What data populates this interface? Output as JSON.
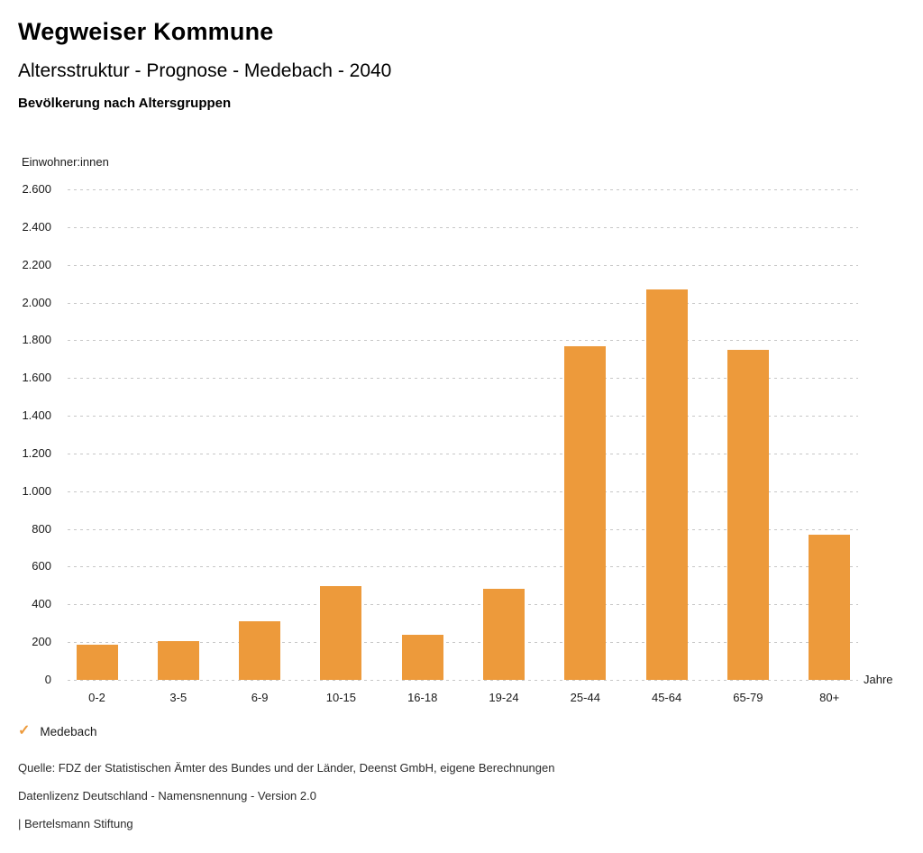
{
  "header": {
    "title": "Wegweiser Kommune",
    "subtitle": "Altersstruktur - Prognose - Medebach - 2040",
    "chart_heading": "Bevölkerung nach Altersgruppen"
  },
  "chart_data": {
    "type": "bar",
    "title": "Bevölkerung nach Altersgruppen",
    "unit_label": "Einwohner:innen",
    "xlabel": "Jahre",
    "ylabel": "Einwohner:innen",
    "categories": [
      "0-2",
      "3-5",
      "6-9",
      "10-15",
      "16-18",
      "19-24",
      "25-44",
      "45-64",
      "65-79",
      "80+"
    ],
    "series": [
      {
        "name": "Medebach",
        "values": [
          185,
          205,
          310,
          495,
          240,
          485,
          1770,
          2070,
          1750,
          770
        ]
      }
    ],
    "ylim": [
      0,
      2600
    ],
    "ytick_step": 200,
    "ytick_labels": [
      "0",
      "200",
      "400",
      "600",
      "800",
      "1.000",
      "1.200",
      "1.400",
      "1.600",
      "1.800",
      "2.000",
      "2.200",
      "2.400",
      "2.600"
    ],
    "grid": "horizontal dotted",
    "legend_position": "bottom-left",
    "bar_color": "#ED9A3B"
  },
  "legend": {
    "marker": "check",
    "marker_glyph": "✓",
    "marker_color": "#ED9A3B",
    "label": "Medebach"
  },
  "footer": {
    "source": "Quelle: FDZ der Statistischen Ämter des Bundes und der Länder, Deenst GmbH, eigene Berechnungen",
    "license": "Datenlizenz Deutschland - Namensnennung - Version 2.0",
    "brand": "| Bertelsmann Stiftung"
  }
}
